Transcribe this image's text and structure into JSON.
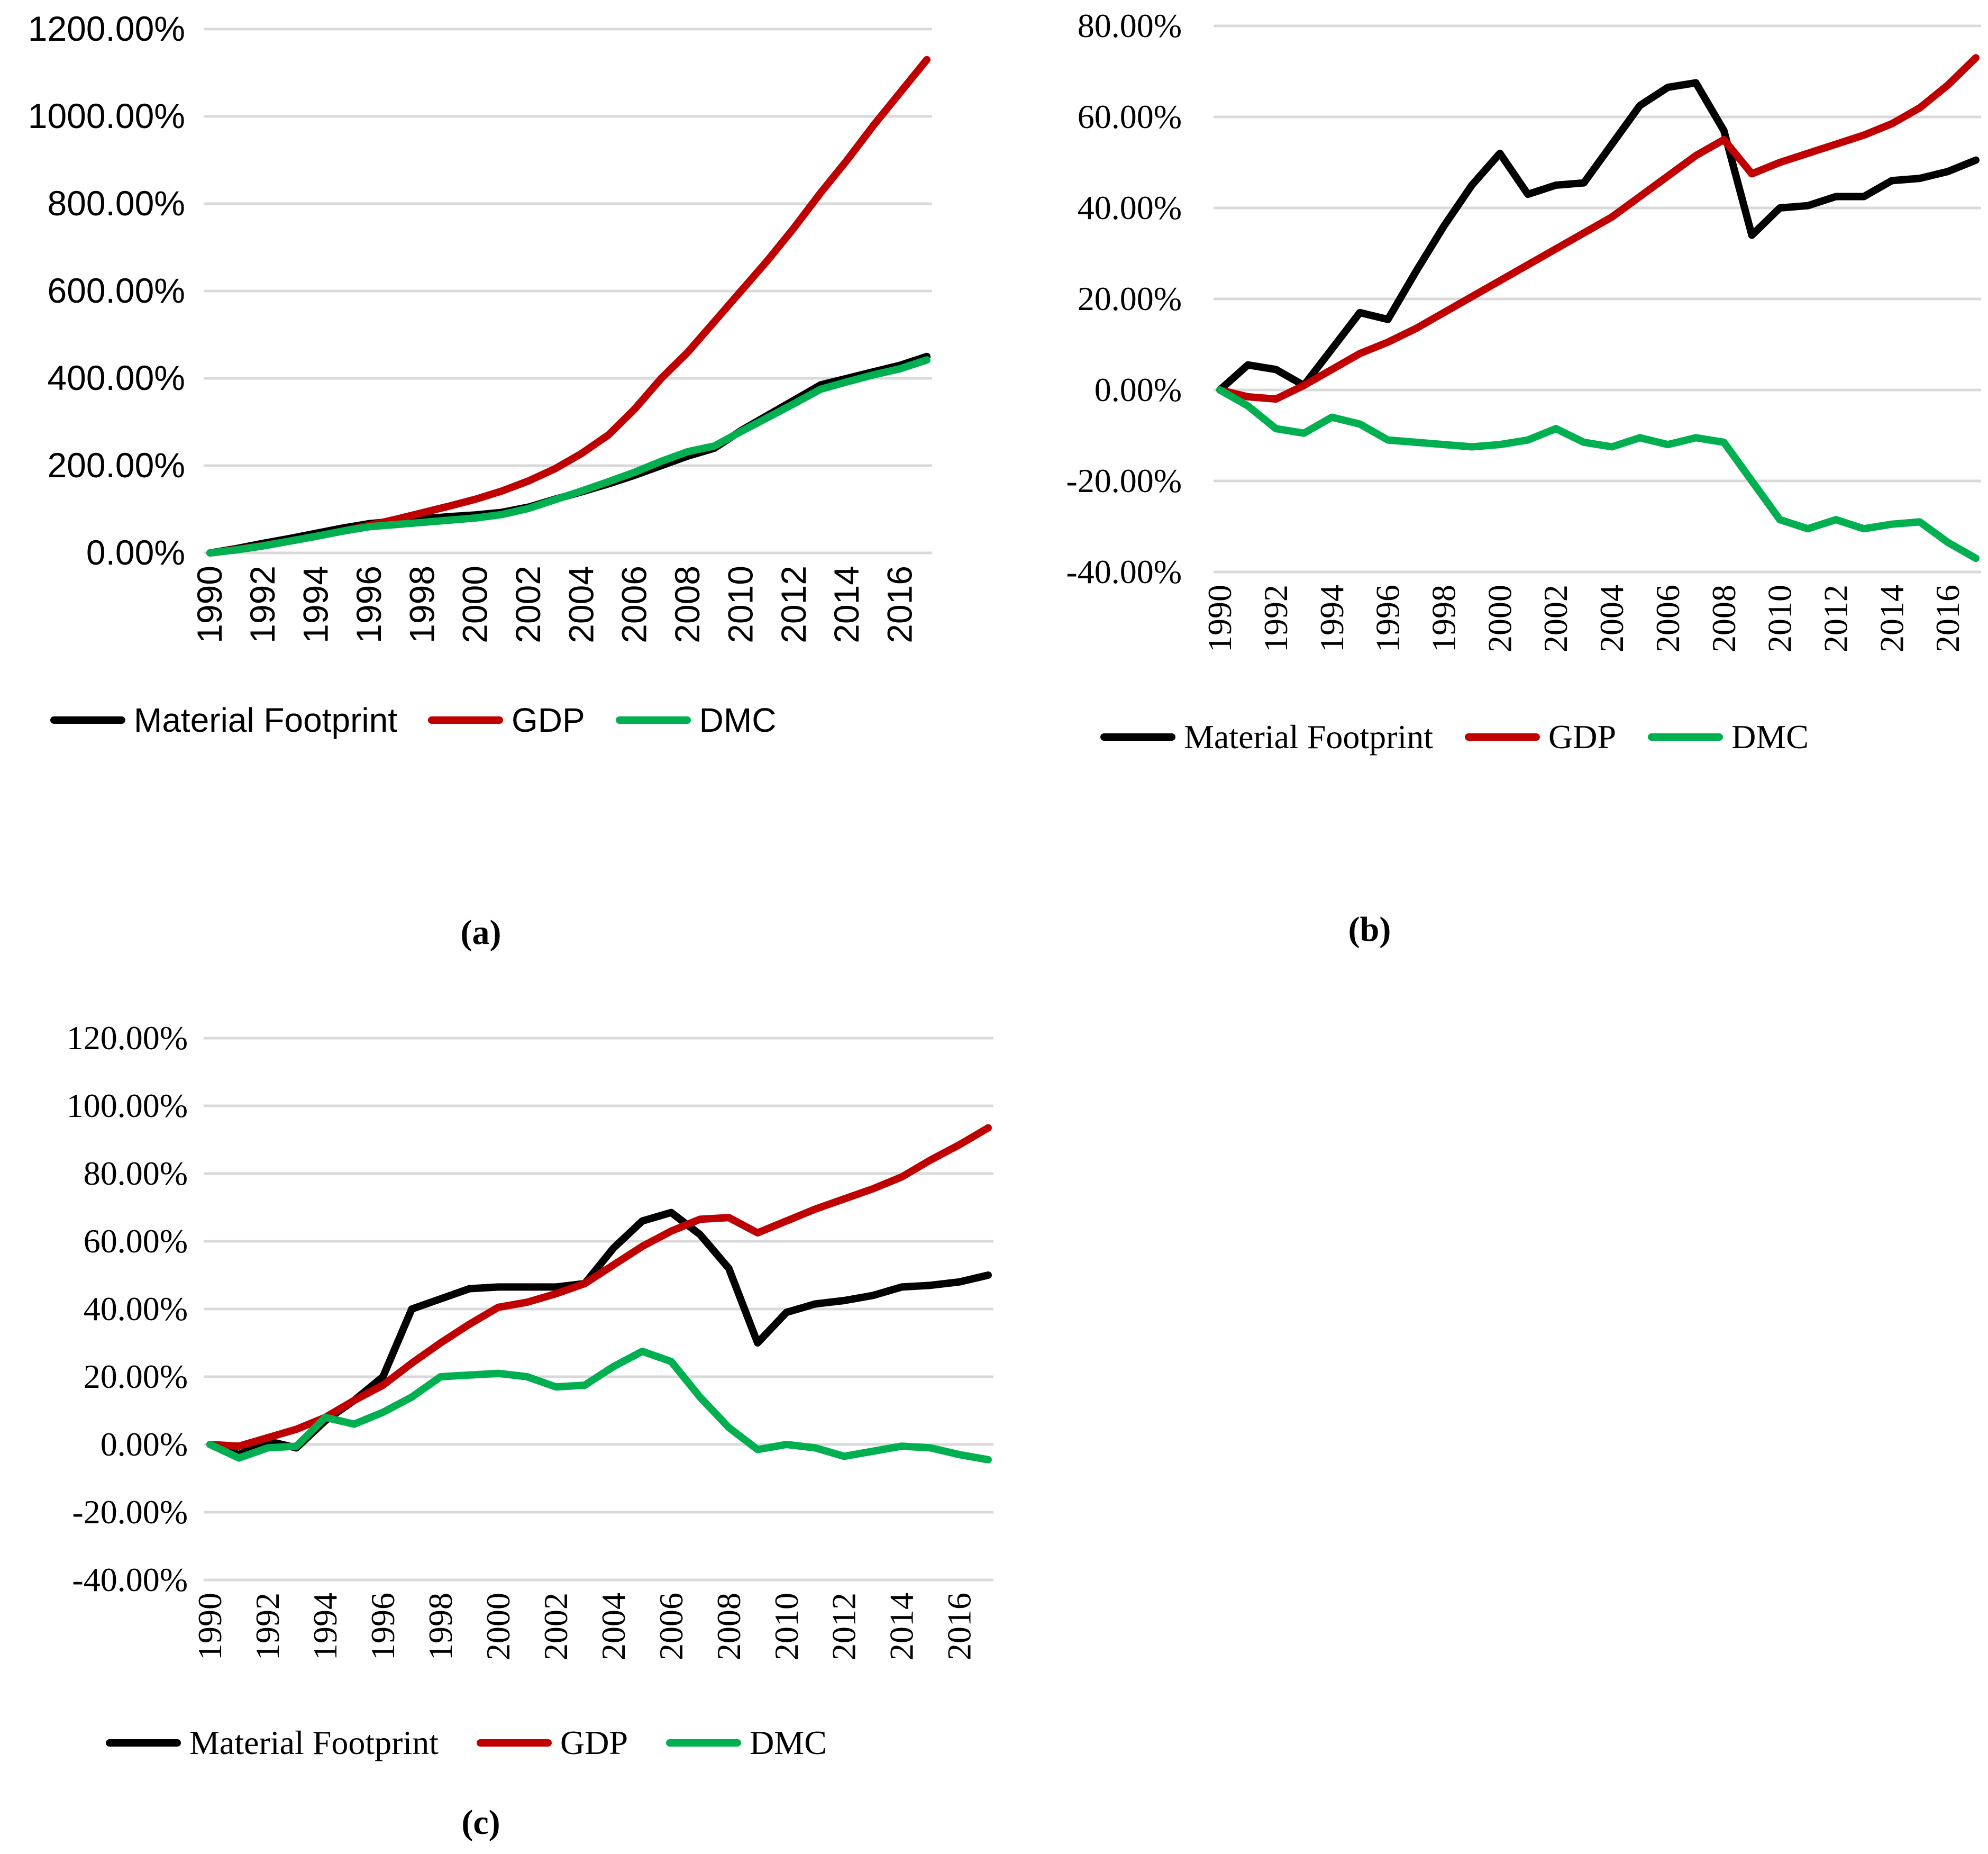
{
  "figure": {
    "captions": {
      "a": "(a)",
      "b": "(b)",
      "c": "(c)"
    },
    "legend_labels": {
      "mf": "Material Footprint",
      "gdp": "GDP",
      "dmc": "DMC"
    },
    "colors": {
      "mf": "#000000",
      "gdp": "#c00000",
      "dmc": "#00b050",
      "grid": "#d9d9d9"
    }
  },
  "years": [
    1990,
    1991,
    1992,
    1993,
    1994,
    1995,
    1996,
    1997,
    1998,
    1999,
    2000,
    2001,
    2002,
    2003,
    2004,
    2005,
    2006,
    2007,
    2008,
    2009,
    2010,
    2011,
    2012,
    2013,
    2014,
    2015,
    2016,
    2017
  ],
  "x_tick_labels": [
    "1990",
    "1992",
    "1994",
    "1996",
    "1998",
    "2000",
    "2002",
    "2004",
    "2006",
    "2008",
    "2010",
    "2012",
    "2014",
    "2016"
  ],
  "chart_data": [
    {
      "id": "a",
      "type": "line",
      "title": "",
      "xlabel": "",
      "ylabel": "",
      "grid": true,
      "legend_position": "bottom",
      "ylim": [
        0,
        1200
      ],
      "ytick_step": 200,
      "ytick_labels": [
        "1200.00%",
        "1000.00%",
        "800.00%",
        "600.00%",
        "400.00%",
        "200.00%",
        "0.00%"
      ],
      "series": [
        {
          "key": "mf",
          "name": "Material Footprint",
          "color": "#000000",
          "values": [
            0,
            10,
            22,
            33,
            45,
            57,
            67,
            73,
            78,
            83,
            87,
            93,
            105,
            123,
            140,
            158,
            178,
            200,
            222,
            240,
            280,
            315,
            350,
            385,
            400,
            415,
            430,
            450
          ]
        },
        {
          "key": "gdp",
          "name": "GDP",
          "color": "#c00000",
          "values": [
            0,
            8,
            17,
            27,
            38,
            50,
            63,
            77,
            92,
            107,
            123,
            142,
            165,
            193,
            228,
            270,
            330,
            400,
            460,
            530,
            600,
            670,
            745,
            825,
            900,
            980,
            1055,
            1130
          ]
        },
        {
          "key": "dmc",
          "name": "DMC",
          "color": "#00b050",
          "values": [
            0,
            7,
            16,
            27,
            38,
            50,
            60,
            65,
            70,
            75,
            80,
            88,
            102,
            122,
            142,
            163,
            185,
            210,
            232,
            245,
            278,
            310,
            342,
            375,
            392,
            408,
            422,
            442
          ]
        }
      ]
    },
    {
      "id": "b",
      "type": "line",
      "title": "",
      "xlabel": "",
      "ylabel": "",
      "grid": true,
      "legend_position": "bottom",
      "ylim": [
        -40,
        80
      ],
      "ytick_step": 20,
      "ytick_labels": [
        "80.00%",
        "60.00%",
        "40.00%",
        "20.00%",
        "0.00%",
        "-20.00%",
        "-40.00%"
      ],
      "series": [
        {
          "key": "mf",
          "name": "Material Footprint",
          "color": "#000000",
          "values": [
            0,
            5.5,
            4.5,
            1,
            9,
            17,
            15.5,
            26,
            36,
            45,
            52,
            43,
            45,
            45.5,
            54,
            62.5,
            66.5,
            67.5,
            57,
            34,
            40,
            40.5,
            42.5,
            42.5,
            46,
            46.5,
            48,
            50.5
          ]
        },
        {
          "key": "gdp",
          "name": "GDP",
          "color": "#c00000",
          "values": [
            0,
            -1.5,
            -2,
            1,
            4.5,
            8,
            10.5,
            13.5,
            17,
            20.5,
            24,
            27.5,
            31,
            34.5,
            38,
            42.5,
            47,
            51.5,
            55,
            47.5,
            50,
            52,
            54,
            56,
            58.5,
            62,
            67,
            73
          ]
        },
        {
          "key": "dmc",
          "name": "DMC",
          "color": "#00b050",
          "values": [
            0,
            -3.5,
            -8.5,
            -9.5,
            -6,
            -7.5,
            -11,
            -11.5,
            -12,
            -12.5,
            -12,
            -11,
            -8.5,
            -11.5,
            -12.5,
            -10.5,
            -12,
            -10.5,
            -11.5,
            -20,
            -28.5,
            -30.5,
            -28.5,
            -30.5,
            -29.5,
            -29,
            -33.5,
            -37
          ]
        }
      ]
    },
    {
      "id": "c",
      "type": "line",
      "title": "",
      "xlabel": "",
      "ylabel": "",
      "grid": true,
      "legend_position": "bottom",
      "ylim": [
        -40,
        120
      ],
      "ytick_step": 20,
      "ytick_labels": [
        "120.00%",
        "100.00%",
        "80.00%",
        "60.00%",
        "40.00%",
        "20.00%",
        "0.00%",
        "-20.00%",
        "-40.00%"
      ],
      "series": [
        {
          "key": "mf",
          "name": "Material Footprint",
          "color": "#000000",
          "values": [
            0,
            -3,
            1,
            -1,
            7,
            13,
            20,
            40,
            43,
            46,
            46.5,
            46.5,
            46.5,
            47.5,
            58,
            66,
            68.5,
            62,
            52,
            30,
            39,
            41.5,
            42.5,
            44,
            46.5,
            47,
            48,
            50
          ]
        },
        {
          "key": "gdp",
          "name": "GDP",
          "color": "#c00000",
          "values": [
            0,
            -0.5,
            2,
            4.5,
            8,
            13,
            17.5,
            24,
            30,
            35.5,
            40.5,
            42,
            44.5,
            47.5,
            53,
            58.5,
            63,
            66.5,
            67,
            62.5,
            66,
            69.5,
            72.5,
            75.5,
            79,
            84,
            88.5,
            93.5
          ]
        },
        {
          "key": "dmc",
          "name": "DMC",
          "color": "#00b050",
          "values": [
            0,
            -4,
            -1,
            -0.5,
            8,
            6,
            9.5,
            14,
            20,
            20.5,
            21,
            20,
            17,
            17.5,
            23,
            27.5,
            24.5,
            14,
            5,
            -1.5,
            0,
            -1,
            -3.5,
            -2,
            -0.5,
            -1,
            -3,
            -4.5
          ]
        }
      ]
    }
  ]
}
